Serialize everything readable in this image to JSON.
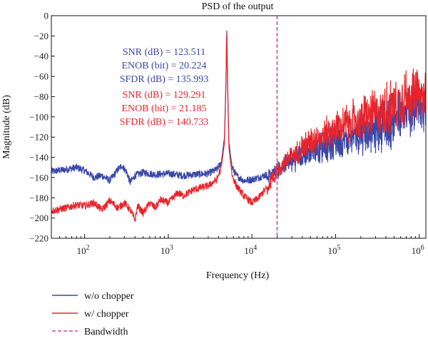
{
  "chart_data": {
    "type": "line",
    "title": "PSD of the output",
    "xlabel": "Frequency (Hz)",
    "ylabel": "Magnitude (dB)",
    "xscale": "log",
    "xlim": [
      40,
      1200000
    ],
    "ylim": [
      -220,
      0
    ],
    "yticks": [
      0,
      -20,
      -40,
      -60,
      -80,
      -100,
      -120,
      -140,
      -160,
      -180,
      -200,
      -220
    ],
    "xticks": [
      {
        "value": 100,
        "base": "10",
        "exp": "2"
      },
      {
        "value": 1000,
        "base": "10",
        "exp": "3"
      },
      {
        "value": 10000,
        "base": "10",
        "exp": "4"
      },
      {
        "value": 100000,
        "base": "10",
        "exp": "5"
      },
      {
        "value": 1000000,
        "base": "10",
        "exp": "6"
      }
    ],
    "grid": false,
    "legend_position": "bottom-left",
    "bandwidth_hz": 20000,
    "series": [
      {
        "name": "w/o chopper",
        "color": "#3a47a8",
        "x": [
          40,
          60,
          80,
          100,
          130,
          160,
          200,
          250,
          280,
          320,
          350,
          400,
          500,
          700,
          1000,
          1500,
          2000,
          3000,
          3800,
          4300,
          4700,
          4900,
          5000,
          5100,
          5300,
          5800,
          6500,
          8000,
          10000,
          12000,
          15000,
          20000,
          30000,
          50000,
          100000,
          200000,
          500000,
          800000,
          1000000,
          1200000
        ],
        "y": [
          -154,
          -152,
          -150,
          -153,
          -160,
          -158,
          -163,
          -152,
          -148,
          -155,
          -165,
          -158,
          -155,
          -157,
          -156,
          -158,
          -157,
          -156,
          -152,
          -145,
          -120,
          -60,
          -10,
          -60,
          -125,
          -150,
          -158,
          -163,
          -162,
          -160,
          -157,
          -150,
          -140,
          -130,
          -118,
          -108,
          -95,
          -85,
          -87,
          -88
        ]
      },
      {
        "name": "w/ chopper",
        "color": "#e8232a",
        "x": [
          40,
          60,
          80,
          100,
          130,
          160,
          200,
          250,
          300,
          350,
          400,
          430,
          500,
          600,
          700,
          800,
          1000,
          1300,
          1500,
          2000,
          3000,
          3800,
          4300,
          4700,
          4900,
          5000,
          5100,
          5300,
          5800,
          6500,
          8000,
          10000,
          12000,
          15000,
          20000,
          30000,
          50000,
          100000,
          200000,
          500000,
          800000,
          1000000,
          1200000
        ],
        "y": [
          -193,
          -190,
          -187,
          -188,
          -185,
          -192,
          -183,
          -190,
          -185,
          -192,
          -202,
          -188,
          -195,
          -185,
          -190,
          -182,
          -185,
          -175,
          -178,
          -172,
          -168,
          -162,
          -150,
          -125,
          -65,
          -12,
          -65,
          -130,
          -158,
          -168,
          -178,
          -185,
          -180,
          -170,
          -150,
          -135,
          -120,
          -105,
          -95,
          -80,
          -70,
          -72,
          -75
        ]
      }
    ],
    "annotations": [
      {
        "color": "#3a47a8",
        "lines": [
          "SNR (dB) = 123.511",
          "ENOB (bit) = 20.224",
          "SFDR (dB) = 135.993"
        ]
      },
      {
        "color": "#e8232a",
        "lines": [
          "SNR (dB) = 129.291",
          "ENOB (bit) = 21.185",
          "SFDR (dB) = 140.733"
        ]
      }
    ]
  },
  "legend": {
    "items": [
      {
        "label": "w/o chopper",
        "color": "#3a47a8",
        "style": "solid"
      },
      {
        "label": "w/ chopper",
        "color": "#e8232a",
        "style": "solid"
      },
      {
        "label": "Bandwidth",
        "color": "#d04a8c",
        "style": "dashed"
      }
    ]
  }
}
